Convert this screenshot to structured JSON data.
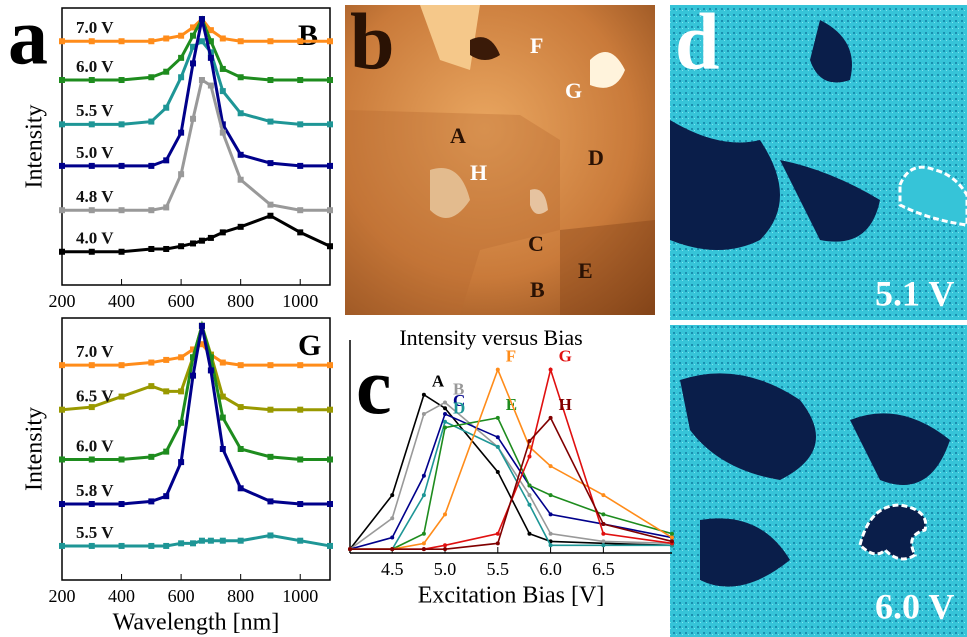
{
  "panel_letters": [
    "a",
    "b",
    "c",
    "d"
  ],
  "image_b": {
    "labels": [
      "A",
      "B",
      "C",
      "D",
      "E",
      "F",
      "G",
      "H"
    ]
  },
  "image_d": {
    "labels": [
      "5.1 V",
      "6.0 V"
    ]
  },
  "chart_data": [
    {
      "type": "line",
      "corner_label": "B",
      "ylabel": "Intensity",
      "x": [
        200,
        300,
        400,
        500,
        550,
        600,
        640,
        670,
        700,
        740,
        800,
        900,
        1000,
        1100
      ],
      "xlim": [
        200,
        1100
      ],
      "xticks": [
        200,
        400,
        600,
        800,
        1000
      ],
      "ylim": [
        0,
        100
      ],
      "series": [
        {
          "name": "7.0 V",
          "color": "#ff8c1a",
          "values": [
            88,
            88,
            88,
            88,
            89,
            90,
            93,
            96,
            92,
            89,
            88,
            88,
            88,
            88
          ]
        },
        {
          "name": "6.0 V",
          "color": "#1e8c1e",
          "values": [
            74,
            74,
            74,
            75,
            77,
            82,
            90,
            96,
            88,
            78,
            75,
            74,
            74,
            74
          ]
        },
        {
          "name": "5.5 V",
          "color": "#1e9696",
          "values": [
            58,
            58,
            58,
            59,
            64,
            75,
            86,
            88,
            84,
            70,
            62,
            59,
            58,
            58
          ]
        },
        {
          "name": "5.0 V",
          "color": "#00008b",
          "values": [
            43,
            43,
            43,
            43,
            45,
            55,
            80,
            96,
            82,
            58,
            47,
            44,
            43,
            43
          ]
        },
        {
          "name": "4.8 V",
          "color": "#999999",
          "values": [
            27,
            27,
            27,
            27,
            28,
            40,
            60,
            74,
            72,
            55,
            38,
            29,
            27,
            27
          ]
        },
        {
          "name": "4.0 V",
          "color": "#000000",
          "values": [
            12,
            12,
            12,
            13,
            13,
            14,
            15,
            16,
            17,
            19,
            21,
            25,
            19,
            14
          ]
        }
      ]
    },
    {
      "type": "line",
      "corner_label": "G",
      "ylabel": "Intensity",
      "xlabel": "Wavelength [nm]",
      "x": [
        200,
        300,
        400,
        500,
        550,
        600,
        640,
        670,
        700,
        740,
        800,
        900,
        1000,
        1100
      ],
      "xlim": [
        200,
        1100
      ],
      "xticks": [
        200,
        400,
        600,
        800,
        1000
      ],
      "ylim": [
        0,
        100
      ],
      "series": [
        {
          "name": "7.0 V",
          "color": "#ff8c1a",
          "values": [
            82,
            82,
            82,
            83,
            84,
            85,
            88,
            90,
            86,
            83,
            82,
            82,
            82,
            82
          ]
        },
        {
          "name": "6.5 V",
          "color": "#999900",
          "values": [
            65,
            66,
            70,
            74,
            72,
            72,
            85,
            97,
            86,
            70,
            66,
            65,
            65,
            65
          ]
        },
        {
          "name": "6.0 V",
          "color": "#1e8c1e",
          "values": [
            46,
            46,
            46,
            47,
            49,
            60,
            85,
            97,
            85,
            62,
            50,
            47,
            46,
            46
          ]
        },
        {
          "name": "5.8 V",
          "color": "#00008b",
          "values": [
            29,
            29,
            29,
            30,
            32,
            45,
            78,
            97,
            80,
            50,
            35,
            30,
            29,
            29
          ]
        },
        {
          "name": "5.5 V",
          "color": "#1e9696",
          "values": [
            13,
            13,
            13,
            13,
            13,
            14,
            14,
            15,
            15,
            15,
            15,
            17,
            15,
            13
          ]
        }
      ]
    },
    {
      "type": "bias",
      "title": "Intensity versus Bias",
      "xlabel": "Excitation Bias [V]",
      "x": [
        4.1,
        4.5,
        4.8,
        5.0,
        5.5,
        5.8,
        6.0,
        6.5,
        7.15
      ],
      "xlim": [
        4.1,
        7.15
      ],
      "ylim": [
        0,
        1
      ],
      "xticks": [
        4.5,
        {
          "value": 5.0,
          "label": "5.0"
        },
        5.5,
        {
          "value": 6.0,
          "label": "6.0"
        },
        6.5
      ],
      "series": [
        {
          "name": "A",
          "color": "#000000",
          "values": [
            0.02,
            0.3,
            0.82,
            0.75,
            0.42,
            0.1,
            0.06,
            0.05,
            0.04
          ]
        },
        {
          "name": "B",
          "color": "#999999",
          "values": [
            0.02,
            0.18,
            0.72,
            0.78,
            0.55,
            0.3,
            0.1,
            0.06,
            0.05
          ]
        },
        {
          "name": "C",
          "color": "#00008b",
          "values": [
            0.02,
            0.08,
            0.4,
            0.72,
            0.6,
            0.35,
            0.2,
            0.15,
            0.08
          ]
        },
        {
          "name": "D",
          "color": "#1e9696",
          "values": [
            0.02,
            0.02,
            0.3,
            0.68,
            0.55,
            0.25,
            0.04,
            0.04,
            0.04
          ]
        },
        {
          "name": "E",
          "color": "#1e8c1e",
          "values": [
            0.02,
            0.02,
            0.1,
            0.65,
            0.7,
            0.35,
            0.3,
            0.2,
            0.1
          ]
        },
        {
          "name": "F",
          "color": "#ff8c1a",
          "values": [
            0.02,
            0.02,
            0.05,
            0.2,
            0.95,
            0.55,
            0.45,
            0.3,
            0.08
          ]
        },
        {
          "name": "G",
          "color": "#e01010",
          "values": [
            0.02,
            0.02,
            0.02,
            0.04,
            0.1,
            0.5,
            0.95,
            0.1,
            0.05
          ]
        },
        {
          "name": "H",
          "color": "#800000",
          "values": [
            0.02,
            0.02,
            0.02,
            0.02,
            0.05,
            0.58,
            0.7,
            0.15,
            0.06
          ]
        }
      ]
    }
  ]
}
